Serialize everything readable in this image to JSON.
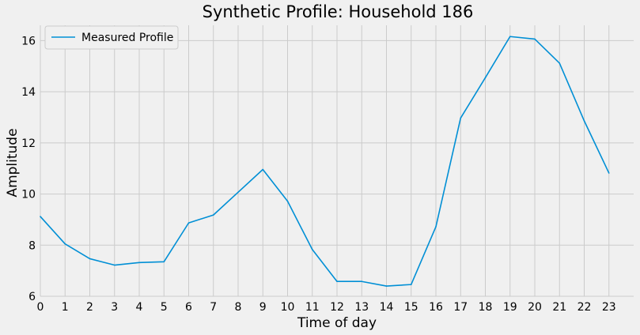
{
  "chart_data": {
    "type": "line",
    "title": "Synthetic Profile: Household 186",
    "xlabel": "Time of day",
    "ylabel": "Amplitude",
    "x": [
      0,
      1,
      2,
      3,
      4,
      5,
      6,
      7,
      8,
      9,
      10,
      11,
      12,
      13,
      14,
      15,
      16,
      17,
      18,
      19,
      20,
      21,
      22,
      23
    ],
    "xlim": [
      0,
      24
    ],
    "ylim": [
      6,
      16.6
    ],
    "yticks": [
      6,
      8,
      10,
      12,
      14,
      16
    ],
    "grid": true,
    "legend": "top-left",
    "series": [
      {
        "name": "Measured Profile",
        "color": "#008fd5",
        "values": [
          9.12,
          8.05,
          7.47,
          7.22,
          7.32,
          7.35,
          8.87,
          9.18,
          10.07,
          10.96,
          9.72,
          7.83,
          6.58,
          6.58,
          6.4,
          6.46,
          8.72,
          12.97,
          14.55,
          16.16,
          16.06,
          15.12,
          12.86,
          10.82
        ]
      }
    ]
  },
  "colors": {
    "background": "#f0f0f0",
    "grid": "#cbcbcb"
  }
}
